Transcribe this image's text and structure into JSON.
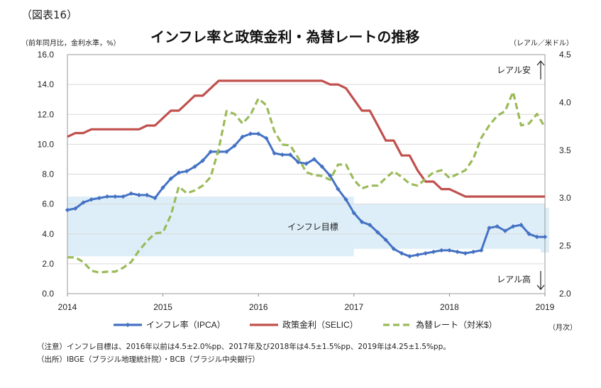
{
  "figure_label": "（図表16）",
  "title": "インフレ率と政策金利・為替レートの推移",
  "left_axis_unit": "（前年同月比，金利水準，%）",
  "right_axis_unit": "（レアル／米ドル）",
  "x_unit": "（月次）",
  "note": "（注意）インフレ目標は、2016年以前は4.5±2.0%pp、2017年及び2018年は4.5±1.5%pp、2019年は4.25±1.5%pp。",
  "source": "（出所）IBGE（ブラジル地理統計院）・BCB（ブラジル中央銀行）",
  "colors": {
    "ipca": "#4472C4",
    "selic": "#C0504D",
    "fx": "#9BBB59",
    "band": "#DDEEF8"
  },
  "chart_data": {
    "type": "line",
    "x_ticks": [
      "2014",
      "2015",
      "2016",
      "2017",
      "2018",
      "2019"
    ],
    "x_range": [
      "2014-01",
      "2019-01"
    ],
    "left_axis": {
      "ticks": [
        "0.0",
        "2.0",
        "4.0",
        "6.0",
        "8.0",
        "10.0",
        "12.0",
        "14.0",
        "16.0"
      ],
      "ylim": [
        0,
        16
      ]
    },
    "right_axis": {
      "ticks": [
        "2.0",
        "2.5",
        "3.0",
        "3.5",
        "4.0",
        "4.5"
      ],
      "ylim": [
        2.0,
        4.5
      ]
    },
    "annotations": {
      "weak": "レアル安",
      "strong": "レアル高",
      "band": "インフレ目標"
    },
    "inflation_target": [
      {
        "start": "2014-01",
        "end": "2016-12",
        "lower": 2.5,
        "upper": 6.5
      },
      {
        "start": "2017-01",
        "end": "2018-12",
        "lower": 3.0,
        "upper": 6.0
      },
      {
        "start": "2019-01",
        "end": "2019-01",
        "lower": 2.75,
        "upper": 5.75
      }
    ],
    "series": [
      {
        "name": "インフレ率（IPCA）",
        "axis": "left",
        "style": "line-marker",
        "color": "#4472C4",
        "x": [
          "2014-01",
          "2014-02",
          "2014-03",
          "2014-04",
          "2014-05",
          "2014-06",
          "2014-07",
          "2014-08",
          "2014-09",
          "2014-10",
          "2014-11",
          "2014-12",
          "2015-01",
          "2015-02",
          "2015-03",
          "2015-04",
          "2015-05",
          "2015-06",
          "2015-07",
          "2015-08",
          "2015-09",
          "2015-10",
          "2015-11",
          "2015-12",
          "2016-01",
          "2016-02",
          "2016-03",
          "2016-04",
          "2016-05",
          "2016-06",
          "2016-07",
          "2016-08",
          "2016-09",
          "2016-10",
          "2016-11",
          "2016-12",
          "2017-01",
          "2017-02",
          "2017-03",
          "2017-04",
          "2017-05",
          "2017-06",
          "2017-07",
          "2017-08",
          "2017-09",
          "2017-10",
          "2017-11",
          "2017-12",
          "2018-01",
          "2018-02",
          "2018-03",
          "2018-04",
          "2018-05",
          "2018-06",
          "2018-07",
          "2018-08",
          "2018-09",
          "2018-10",
          "2018-11",
          "2018-12",
          "2019-01"
        ],
        "values": [
          5.6,
          5.7,
          6.1,
          6.3,
          6.4,
          6.5,
          6.5,
          6.5,
          6.7,
          6.6,
          6.6,
          6.4,
          7.1,
          7.7,
          8.1,
          8.2,
          8.5,
          8.9,
          9.5,
          9.5,
          9.5,
          9.9,
          10.5,
          10.7,
          10.7,
          10.4,
          9.4,
          9.3,
          9.3,
          8.8,
          8.7,
          9.0,
          8.5,
          7.9,
          7.0,
          6.3,
          5.4,
          4.8,
          4.6,
          4.1,
          3.6,
          3.0,
          2.7,
          2.5,
          2.6,
          2.7,
          2.8,
          2.9,
          2.9,
          2.8,
          2.7,
          2.8,
          2.9,
          4.4,
          4.5,
          4.2,
          4.5,
          4.6,
          4.0,
          3.8,
          3.8
        ]
      },
      {
        "name": "政策金利（SELIC）",
        "axis": "left",
        "style": "line",
        "color": "#C0504D",
        "x": [
          "2014-01",
          "2014-02",
          "2014-03",
          "2014-04",
          "2014-05",
          "2014-06",
          "2014-07",
          "2014-08",
          "2014-09",
          "2014-10",
          "2014-11",
          "2014-12",
          "2015-01",
          "2015-02",
          "2015-03",
          "2015-04",
          "2015-05",
          "2015-06",
          "2015-07",
          "2015-08",
          "2015-09",
          "2015-10",
          "2015-11",
          "2015-12",
          "2016-01",
          "2016-02",
          "2016-03",
          "2016-04",
          "2016-05",
          "2016-06",
          "2016-07",
          "2016-08",
          "2016-09",
          "2016-10",
          "2016-11",
          "2016-12",
          "2017-01",
          "2017-02",
          "2017-03",
          "2017-04",
          "2017-05",
          "2017-06",
          "2017-07",
          "2017-08",
          "2017-09",
          "2017-10",
          "2017-11",
          "2017-12",
          "2018-01",
          "2018-02",
          "2018-03",
          "2018-04",
          "2018-05",
          "2018-06",
          "2018-07",
          "2018-08",
          "2018-09",
          "2018-10",
          "2018-11",
          "2018-12",
          "2019-01"
        ],
        "values": [
          10.5,
          10.75,
          10.75,
          11.0,
          11.0,
          11.0,
          11.0,
          11.0,
          11.0,
          11.0,
          11.25,
          11.25,
          11.75,
          12.25,
          12.25,
          12.75,
          13.25,
          13.25,
          13.75,
          14.25,
          14.25,
          14.25,
          14.25,
          14.25,
          14.25,
          14.25,
          14.25,
          14.25,
          14.25,
          14.25,
          14.25,
          14.25,
          14.25,
          14.0,
          14.0,
          13.75,
          13.0,
          12.25,
          12.25,
          11.25,
          10.25,
          10.25,
          9.25,
          9.25,
          8.25,
          7.5,
          7.5,
          7.0,
          7.0,
          6.75,
          6.5,
          6.5,
          6.5,
          6.5,
          6.5,
          6.5,
          6.5,
          6.5,
          6.5,
          6.5,
          6.5
        ]
      },
      {
        "name": "為替レート（対米$）",
        "axis": "right",
        "style": "dashed",
        "color": "#9BBB59",
        "x": [
          "2014-01",
          "2014-02",
          "2014-03",
          "2014-04",
          "2014-05",
          "2014-06",
          "2014-07",
          "2014-08",
          "2014-09",
          "2014-10",
          "2014-11",
          "2014-12",
          "2015-01",
          "2015-02",
          "2015-03",
          "2015-04",
          "2015-05",
          "2015-06",
          "2015-07",
          "2015-08",
          "2015-09",
          "2015-10",
          "2015-11",
          "2015-12",
          "2016-01",
          "2016-02",
          "2016-03",
          "2016-04",
          "2016-05",
          "2016-06",
          "2016-07",
          "2016-08",
          "2016-09",
          "2016-10",
          "2016-11",
          "2016-12",
          "2017-01",
          "2017-02",
          "2017-03",
          "2017-04",
          "2017-05",
          "2017-06",
          "2017-07",
          "2017-08",
          "2017-09",
          "2017-10",
          "2017-11",
          "2017-12",
          "2018-01",
          "2018-02",
          "2018-03",
          "2018-04",
          "2018-05",
          "2018-06",
          "2018-07",
          "2018-08",
          "2018-09",
          "2018-10",
          "2018-11",
          "2018-12",
          "2019-01"
        ],
        "values": [
          2.38,
          2.38,
          2.33,
          2.24,
          2.22,
          2.23,
          2.23,
          2.27,
          2.33,
          2.45,
          2.55,
          2.63,
          2.64,
          2.82,
          3.12,
          3.05,
          3.08,
          3.13,
          3.22,
          3.51,
          3.91,
          3.88,
          3.78,
          3.87,
          4.04,
          3.97,
          3.7,
          3.56,
          3.55,
          3.42,
          3.27,
          3.24,
          3.23,
          3.19,
          3.35,
          3.35,
          3.19,
          3.1,
          3.13,
          3.13,
          3.21,
          3.28,
          3.22,
          3.15,
          3.13,
          3.2,
          3.27,
          3.29,
          3.21,
          3.25,
          3.29,
          3.41,
          3.63,
          3.76,
          3.86,
          3.91,
          4.11,
          3.76,
          3.78,
          3.88,
          3.74
        ]
      }
    ]
  }
}
